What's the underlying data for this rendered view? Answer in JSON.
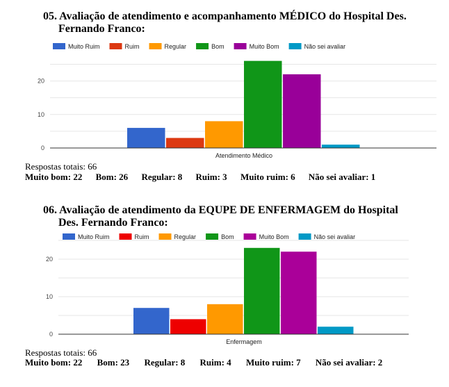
{
  "legend_labels": [
    "Muito Ruim",
    "Ruim",
    "Regular",
    "Bom",
    "Muito Bom",
    "Não sei avaliar"
  ],
  "questions": [
    {
      "title_line1": "05. Avaliação de atendimento e acompanhamento MÉDICO do Hospital Des.",
      "title_line2": "Fernando Franco:",
      "totals": "Respostas totais: 66",
      "summary": [
        "Muito bom: 22",
        "Bom: 26",
        "Regular: 8",
        "Ruim: 3",
        "Muito ruim: 6",
        "Não sei avaliar: 1"
      ]
    },
    {
      "title_line1": "06. Avaliação de atendimento da EQUPE DE ENFERMAGEM do Hospital",
      "title_line2": "Des. Fernando Franco:",
      "totals": "Respostas totais: 66",
      "summary": [
        "Muito bom: 22",
        "Bom: 23",
        "Regular: 8",
        "Ruim: 4",
        "Muito ruim: 7",
        "Não sei avaliar: 2"
      ]
    }
  ],
  "chart_data": [
    {
      "type": "bar",
      "title": "05. Avaliação de atendimento e acompanhamento MÉDICO do Hospital Des. Fernando Franco:",
      "categories": [
        "Atendimento Médico"
      ],
      "series": [
        {
          "name": "Muito Ruim",
          "values": [
            6
          ],
          "color": "#3366cc"
        },
        {
          "name": "Ruim",
          "values": [
            3
          ],
          "color": "#dc3912"
        },
        {
          "name": "Regular",
          "values": [
            8
          ],
          "color": "#ff9900"
        },
        {
          "name": "Bom",
          "values": [
            26
          ],
          "color": "#109618"
        },
        {
          "name": "Muito Bom",
          "values": [
            22
          ],
          "color": "#990099"
        },
        {
          "name": "Não sei avaliar",
          "values": [
            1
          ],
          "color": "#0099c6"
        }
      ],
      "yticks": [
        0,
        10,
        20
      ],
      "ylim": [
        0,
        28
      ],
      "xlabel": "",
      "ylabel": "",
      "legend": "top",
      "grid": true
    },
    {
      "type": "bar",
      "title": "06. Avaliação de atendimento da EQUPE DE ENFERMAGEM do Hospital Des. Fernando Franco:",
      "categories": [
        "Enfermagem"
      ],
      "series": [
        {
          "name": "Muito Ruim",
          "values": [
            7
          ],
          "color": "#3366cc"
        },
        {
          "name": "Ruim",
          "values": [
            4
          ],
          "color": "#ee0000"
        },
        {
          "name": "Regular",
          "values": [
            8
          ],
          "color": "#ff9900"
        },
        {
          "name": "Bom",
          "values": [
            23
          ],
          "color": "#109618"
        },
        {
          "name": "Muito Bom",
          "values": [
            22
          ],
          "color": "#aa0099"
        },
        {
          "name": "Não sei avaliar",
          "values": [
            2
          ],
          "color": "#0099c6"
        }
      ],
      "yticks": [
        0,
        10,
        20
      ],
      "ylim": [
        0,
        25
      ],
      "xlabel": "",
      "ylabel": "",
      "legend": "top",
      "grid": true
    }
  ]
}
